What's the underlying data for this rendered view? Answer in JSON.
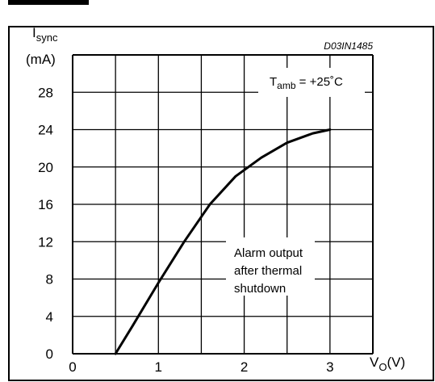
{
  "chart_data": {
    "type": "line",
    "ylabel_main": "I",
    "ylabel_sub": "sync",
    "yunit": "(mA)",
    "xlabel_main": "V",
    "xlabel_sub": "O",
    "xunit": "(V)",
    "figure_code": "D03IN1485",
    "condition_main": "T",
    "condition_sub": "amb",
    "condition_value": " = +25˚C",
    "annotation": [
      "Alarm output",
      "after thermal",
      "shutdown"
    ],
    "xlim": [
      0,
      3.5
    ],
    "ylim": [
      0,
      32
    ],
    "x_ticks": [
      0,
      0.5,
      1,
      1.5,
      2,
      2.5,
      3,
      3.5
    ],
    "y_ticks": [
      0,
      4,
      8,
      12,
      16,
      20,
      24,
      28,
      32
    ],
    "x_tick_labels": [
      "0",
      "1",
      "2",
      "3"
    ],
    "x_tick_values": [
      0,
      1,
      2,
      3
    ],
    "y_tick_labels": [
      "0",
      "4",
      "8",
      "12",
      "16",
      "20",
      "24",
      "28"
    ],
    "y_tick_values": [
      0,
      4,
      8,
      12,
      16,
      20,
      24,
      28
    ],
    "grid": true,
    "series": [
      {
        "x": [
          0.5,
          0.7,
          1.0,
          1.3,
          1.6,
          1.9,
          2.2,
          2.5,
          2.8,
          3.0
        ],
        "y": [
          0,
          3.0,
          7.6,
          12.0,
          16.0,
          19.0,
          21.0,
          22.6,
          23.6,
          24.0
        ]
      }
    ],
    "line_color": "#000000"
  }
}
